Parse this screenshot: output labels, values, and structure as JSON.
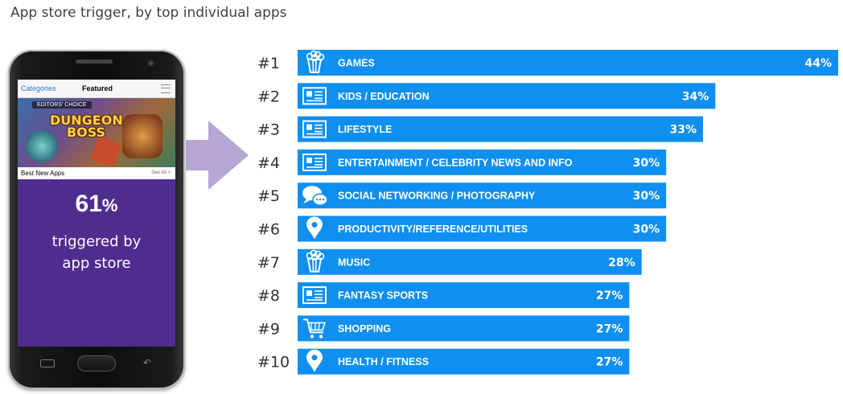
{
  "title": "App store trigger, by top individual apps",
  "phone": {
    "store_categories": "Categories",
    "store_featured": "Featured",
    "banner_badge": "EDITORS' CHOICE",
    "banner_game": "DUNGEON BOSS",
    "best_new_apps": "Best New Apps",
    "see_all": "See All >",
    "stat_value": "61",
    "stat_unit": "%",
    "stat_line1": "triggered by",
    "stat_line2": "app store"
  },
  "colors": {
    "bar": "#0f8fef",
    "phone_panel": "#4f2d8f",
    "arrow": "#b6a6d4",
    "text": "#333333"
  },
  "chart_data": {
    "type": "bar",
    "orientation": "horizontal",
    "title": "App store trigger, by top individual apps",
    "ranks": [
      "#1",
      "#2",
      "#3",
      "#4",
      "#5",
      "#6",
      "#7",
      "#8",
      "#9",
      "#10"
    ],
    "categories": [
      "GAMES",
      "KIDS / EDUCATION",
      "LIFESTYLE",
      "ENTERTAINMENT / CELEBRITY NEWS AND INFO",
      "SOCIAL NETWORKING / PHOTOGRAPHY",
      "PRODUCTIVITY/REFERENCE/UTILITIES",
      "MUSIC",
      "FANTASY SPORTS",
      "SHOPPING",
      "HEALTH / FITNESS"
    ],
    "values": [
      44,
      34,
      33,
      30,
      30,
      30,
      28,
      27,
      27,
      27
    ],
    "value_labels": [
      "44%",
      "34%",
      "33%",
      "30%",
      "30%",
      "30%",
      "28%",
      "27%",
      "27%",
      "27%"
    ],
    "icons": [
      "popcorn-icon",
      "news-icon",
      "news-icon",
      "news-icon",
      "chat-bubbles-icon",
      "map-pin-icon",
      "popcorn-icon",
      "news-icon",
      "cart-icon",
      "map-pin-icon"
    ],
    "xlim": [
      0,
      44
    ],
    "grid": false,
    "legend": "none"
  }
}
